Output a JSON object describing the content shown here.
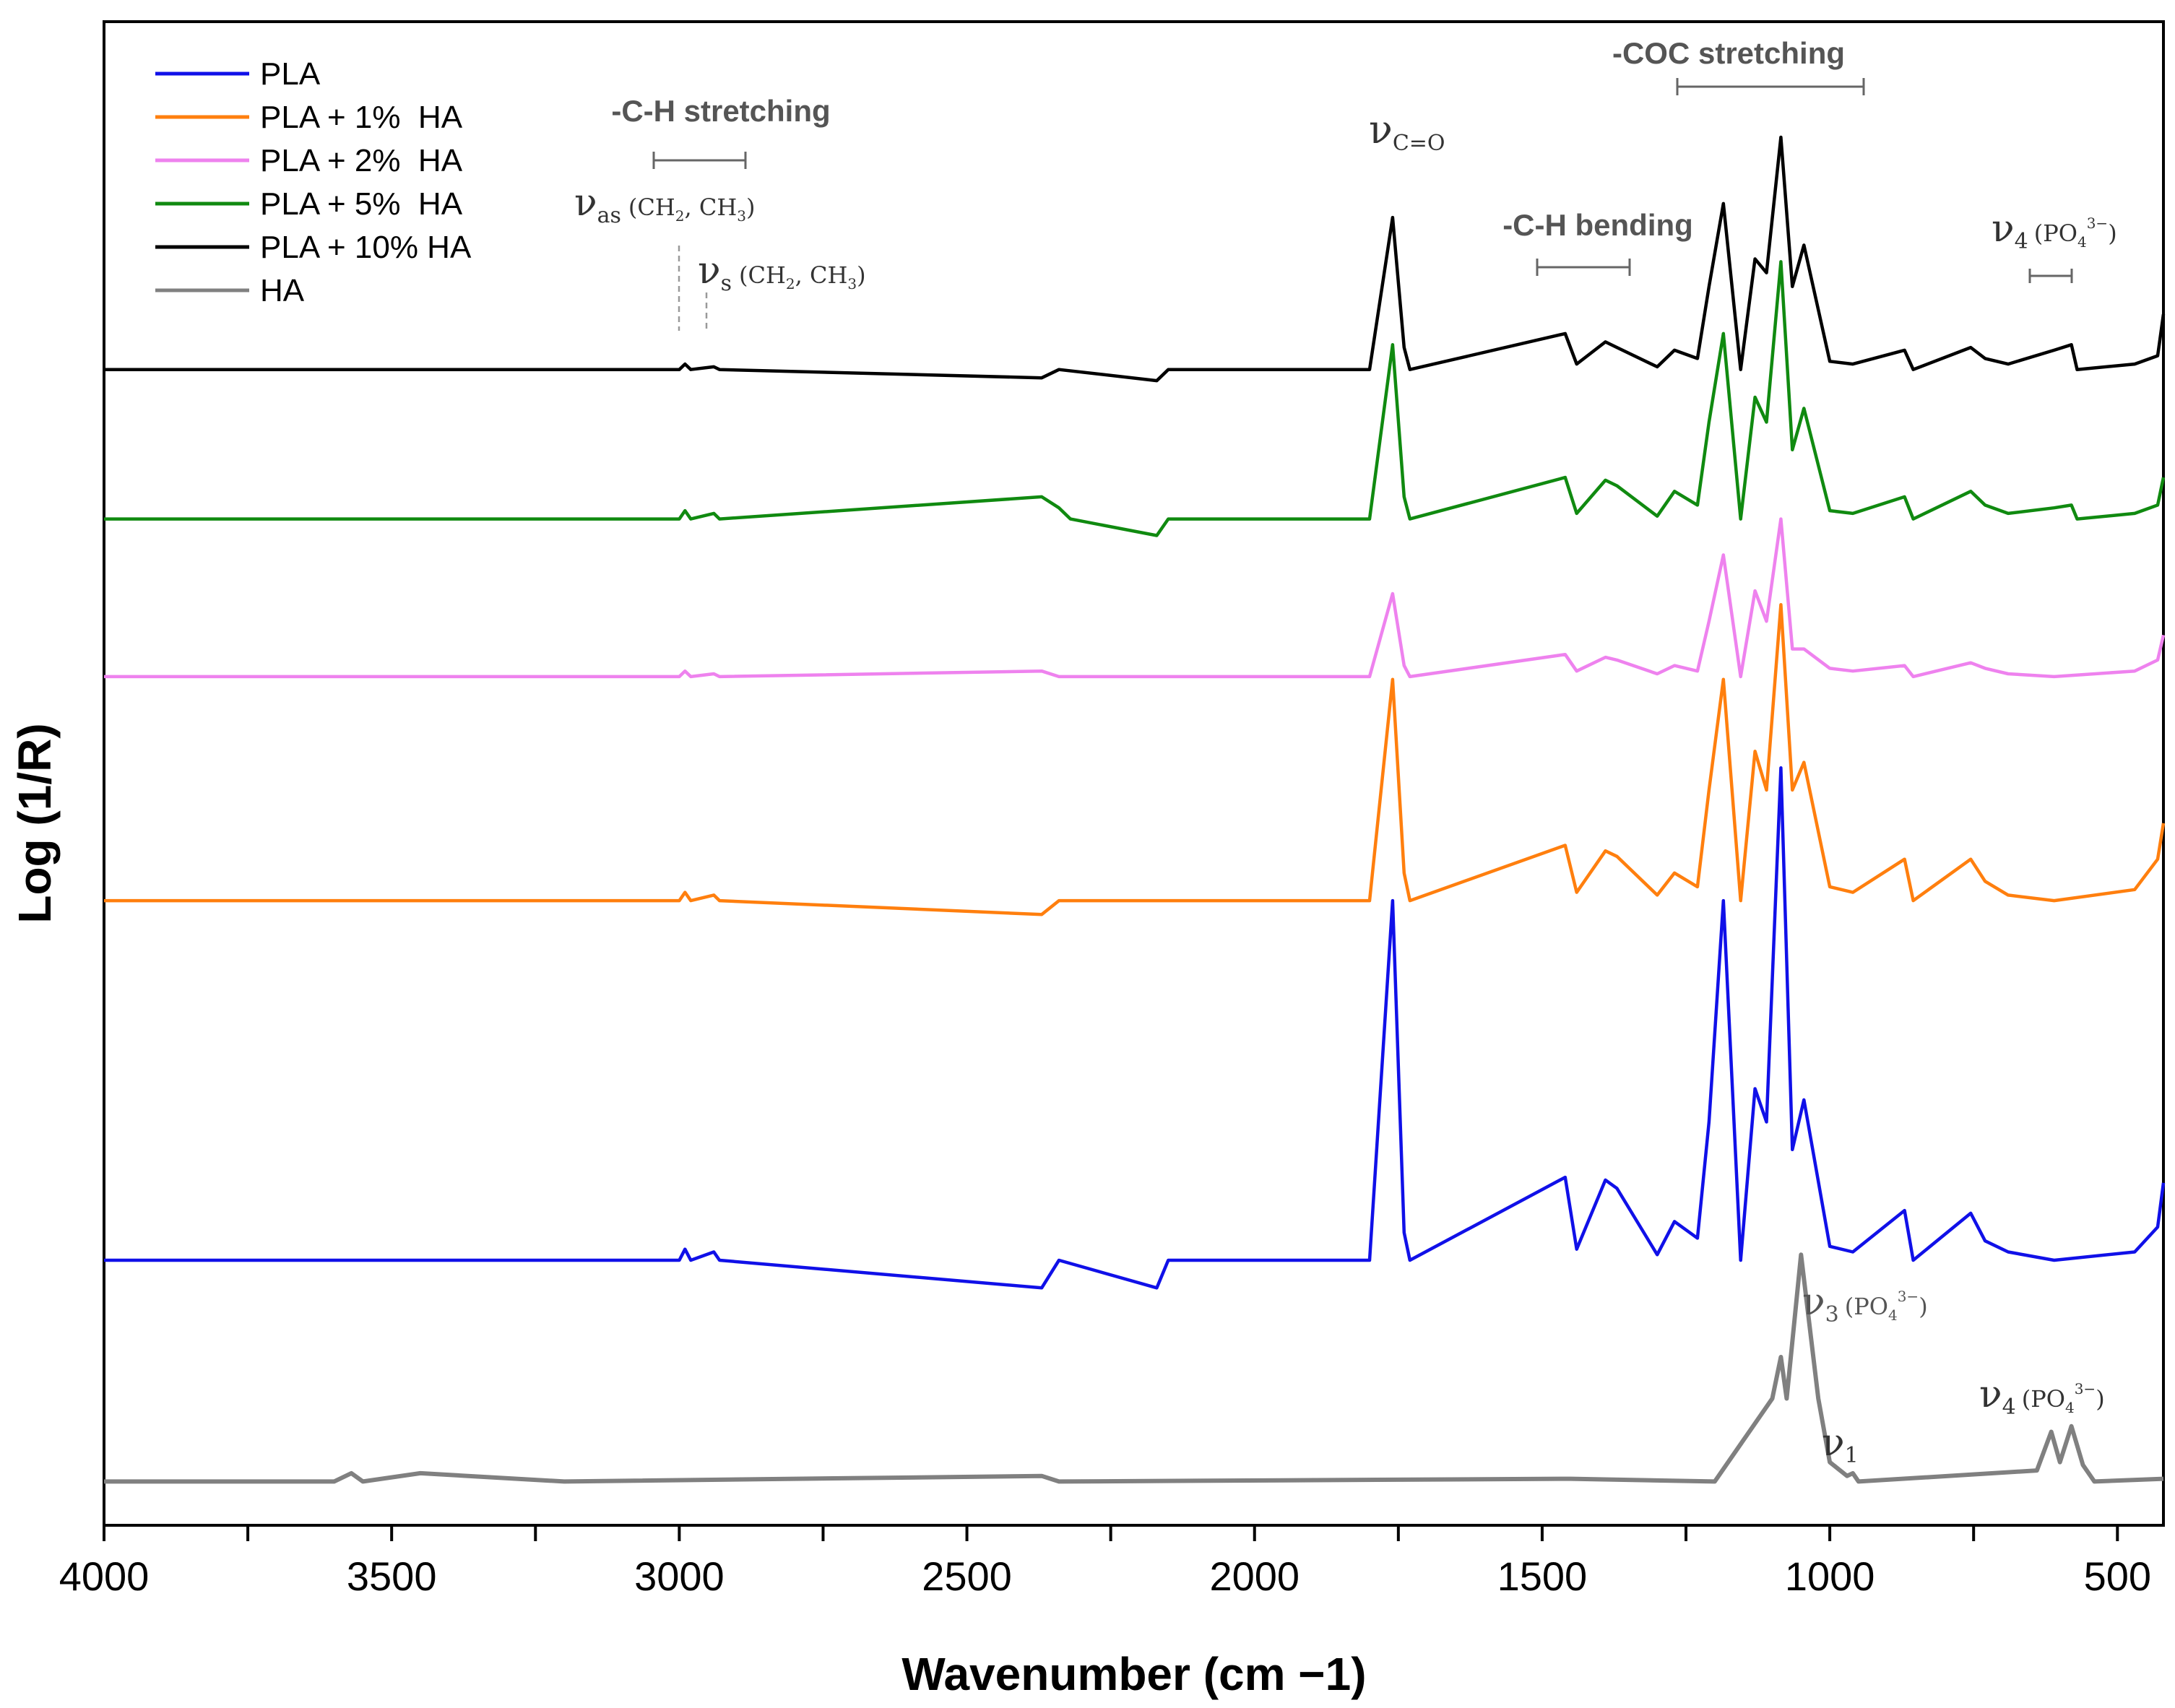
{
  "chart_data": {
    "type": "line",
    "title": "",
    "xlabel": "Wavenumber (cm −1)",
    "ylabel": "Log (1/R)",
    "xlim": [
      4000,
      420
    ],
    "x_ticks": [
      4000,
      3500,
      3000,
      2500,
      2000,
      1500,
      1000,
      500
    ],
    "x_tick_labels": [
      "4000",
      "3500",
      "3000",
      "2500",
      "2000",
      "1500",
      "1000",
      "500"
    ],
    "y_ticks_shown": false,
    "legend": {
      "placement": "top-left"
    },
    "series": [
      {
        "name": "PLA",
        "color": "#1010e8",
        "baseline": 0.0,
        "points": [
          [
            4000,
            0
          ],
          [
            3000,
            0
          ],
          [
            2990,
            0.004
          ],
          [
            2980,
            0
          ],
          [
            2940,
            0.003
          ],
          [
            2930,
            0
          ],
          [
            2370,
            -0.01
          ],
          [
            2340,
            0
          ],
          [
            2170,
            -0.01
          ],
          [
            2150,
            0
          ],
          [
            1800,
            0
          ],
          [
            1760,
            0.13
          ],
          [
            1740,
            0.01
          ],
          [
            1730,
            0
          ],
          [
            1460,
            0.03
          ],
          [
            1440,
            0.004
          ],
          [
            1390,
            0.029
          ],
          [
            1370,
            0.026
          ],
          [
            1300,
            0.002
          ],
          [
            1270,
            0.014
          ],
          [
            1230,
            0.008
          ],
          [
            1210,
            0.05
          ],
          [
            1185,
            0.13
          ],
          [
            1155,
            0
          ],
          [
            1130,
            0.062
          ],
          [
            1110,
            0.05
          ],
          [
            1085,
            0.178
          ],
          [
            1065,
            0.04
          ],
          [
            1045,
            0.058
          ],
          [
            1000,
            0.005
          ],
          [
            960,
            0.003
          ],
          [
            870,
            0.018
          ],
          [
            855,
            0
          ],
          [
            755,
            0.017
          ],
          [
            730,
            0.007
          ],
          [
            690,
            0.003
          ],
          [
            610,
            0
          ],
          [
            470,
            0.003
          ],
          [
            430,
            0.012
          ],
          [
            420,
            0.028
          ]
        ]
      },
      {
        "name": "PLA + 1%  HA",
        "color": "#ff7f0e",
        "baseline": 0.13,
        "points": [
          [
            4000,
            0
          ],
          [
            3000,
            0
          ],
          [
            2990,
            0.003
          ],
          [
            2980,
            0
          ],
          [
            2940,
            0.002
          ],
          [
            2930,
            0
          ],
          [
            2370,
            -0.005
          ],
          [
            2340,
            0
          ],
          [
            1800,
            0
          ],
          [
            1760,
            0.08
          ],
          [
            1740,
            0.01
          ],
          [
            1730,
            0
          ],
          [
            1460,
            0.02
          ],
          [
            1440,
            0.003
          ],
          [
            1390,
            0.018
          ],
          [
            1370,
            0.016
          ],
          [
            1300,
            0.002
          ],
          [
            1270,
            0.01
          ],
          [
            1230,
            0.005
          ],
          [
            1210,
            0.04
          ],
          [
            1185,
            0.08
          ],
          [
            1155,
            0
          ],
          [
            1130,
            0.054
          ],
          [
            1110,
            0.04
          ],
          [
            1085,
            0.107
          ],
          [
            1065,
            0.04
          ],
          [
            1045,
            0.05
          ],
          [
            1000,
            0.005
          ],
          [
            960,
            0.003
          ],
          [
            870,
            0.015
          ],
          [
            855,
            0
          ],
          [
            755,
            0.015
          ],
          [
            730,
            0.007
          ],
          [
            690,
            0.002
          ],
          [
            610,
            0
          ],
          [
            470,
            0.004
          ],
          [
            430,
            0.015
          ],
          [
            420,
            0.028
          ]
        ]
      },
      {
        "name": "PLA + 2%  HA",
        "color": "#ee82ee",
        "baseline": 0.211,
        "points": [
          [
            4000,
            0
          ],
          [
            3000,
            0
          ],
          [
            2990,
            0.002
          ],
          [
            2980,
            0
          ],
          [
            2940,
            0.001
          ],
          [
            2930,
            0
          ],
          [
            2370,
            0.002
          ],
          [
            2340,
            0
          ],
          [
            1800,
            0
          ],
          [
            1760,
            0.03
          ],
          [
            1740,
            0.004
          ],
          [
            1730,
            0
          ],
          [
            1460,
            0.008
          ],
          [
            1440,
            0.002
          ],
          [
            1390,
            0.007
          ],
          [
            1370,
            0.006
          ],
          [
            1300,
            0.001
          ],
          [
            1270,
            0.004
          ],
          [
            1230,
            0.002
          ],
          [
            1210,
            0.02
          ],
          [
            1185,
            0.044
          ],
          [
            1155,
            0
          ],
          [
            1130,
            0.031
          ],
          [
            1110,
            0.02
          ],
          [
            1085,
            0.057
          ],
          [
            1065,
            0.01
          ],
          [
            1045,
            0.01
          ],
          [
            1000,
            0.003
          ],
          [
            960,
            0.002
          ],
          [
            870,
            0.004
          ],
          [
            855,
            0
          ],
          [
            755,
            0.005
          ],
          [
            730,
            0.003
          ],
          [
            690,
            0.001
          ],
          [
            610,
            0
          ],
          [
            470,
            0.002
          ],
          [
            430,
            0.006
          ],
          [
            420,
            0.015
          ]
        ]
      },
      {
        "name": "PLA + 5%  HA",
        "color": "#108a10",
        "baseline": 0.268,
        "points": [
          [
            4000,
            0
          ],
          [
            3000,
            0
          ],
          [
            2990,
            0.003
          ],
          [
            2980,
            0
          ],
          [
            2940,
            0.002
          ],
          [
            2930,
            0
          ],
          [
            2370,
            0.008
          ],
          [
            2340,
            0.004
          ],
          [
            2320,
            0
          ],
          [
            2170,
            -0.006
          ],
          [
            2150,
            0
          ],
          [
            1800,
            0
          ],
          [
            1760,
            0.063
          ],
          [
            1740,
            0.008
          ],
          [
            1730,
            0
          ],
          [
            1460,
            0.015
          ],
          [
            1440,
            0.002
          ],
          [
            1390,
            0.014
          ],
          [
            1370,
            0.012
          ],
          [
            1300,
            0.001
          ],
          [
            1270,
            0.01
          ],
          [
            1230,
            0.005
          ],
          [
            1210,
            0.035
          ],
          [
            1185,
            0.067
          ],
          [
            1155,
            0
          ],
          [
            1130,
            0.044
          ],
          [
            1110,
            0.035
          ],
          [
            1085,
            0.093
          ],
          [
            1065,
            0.025
          ],
          [
            1045,
            0.04
          ],
          [
            1000,
            0.003
          ],
          [
            960,
            0.002
          ],
          [
            870,
            0.008
          ],
          [
            855,
            0
          ],
          [
            755,
            0.01
          ],
          [
            730,
            0.005
          ],
          [
            690,
            0.002
          ],
          [
            610,
            0.004
          ],
          [
            580,
            0.005
          ],
          [
            570,
            0
          ],
          [
            470,
            0.002
          ],
          [
            430,
            0.005
          ],
          [
            420,
            0.015
          ]
        ]
      },
      {
        "name": "PLA + 10% HA",
        "color": "#000000",
        "baseline": 0.322,
        "points": [
          [
            4000,
            0
          ],
          [
            3000,
            0
          ],
          [
            2990,
            0.002
          ],
          [
            2980,
            0
          ],
          [
            2940,
            0.001
          ],
          [
            2930,
            0
          ],
          [
            2370,
            -0.003
          ],
          [
            2340,
            0
          ],
          [
            2170,
            -0.004
          ],
          [
            2150,
            0
          ],
          [
            1800,
            0
          ],
          [
            1760,
            0.055
          ],
          [
            1740,
            0.008
          ],
          [
            1730,
            0
          ],
          [
            1460,
            0.013
          ],
          [
            1440,
            0.002
          ],
          [
            1390,
            0.01
          ],
          [
            1370,
            0.008
          ],
          [
            1300,
            0.001
          ],
          [
            1270,
            0.007
          ],
          [
            1230,
            0.004
          ],
          [
            1210,
            0.03
          ],
          [
            1185,
            0.06
          ],
          [
            1155,
            0
          ],
          [
            1130,
            0.04
          ],
          [
            1110,
            0.035
          ],
          [
            1085,
            0.084
          ],
          [
            1065,
            0.03
          ],
          [
            1045,
            0.045
          ],
          [
            1000,
            0.003
          ],
          [
            960,
            0.002
          ],
          [
            870,
            0.007
          ],
          [
            855,
            0
          ],
          [
            755,
            0.008
          ],
          [
            730,
            0.004
          ],
          [
            690,
            0.002
          ],
          [
            610,
            0.007
          ],
          [
            580,
            0.009
          ],
          [
            570,
            0
          ],
          [
            470,
            0.002
          ],
          [
            430,
            0.005
          ],
          [
            420,
            0.02
          ]
        ]
      },
      {
        "name": "HA",
        "color": "#808080",
        "baseline": -0.08,
        "points": [
          [
            4000,
            0
          ],
          [
            3600,
            0
          ],
          [
            3570,
            0.003
          ],
          [
            3550,
            0
          ],
          [
            3450,
            0.003
          ],
          [
            3200,
            0
          ],
          [
            2370,
            0.002
          ],
          [
            2340,
            0
          ],
          [
            1450,
            0.001
          ],
          [
            1200,
            0
          ],
          [
            1100,
            0.03
          ],
          [
            1085,
            0.045
          ],
          [
            1075,
            0.03
          ],
          [
            1050,
            0.082
          ],
          [
            1020,
            0.03
          ],
          [
            1000,
            0.007
          ],
          [
            970,
            0.002
          ],
          [
            960,
            0.003
          ],
          [
            950,
            0
          ],
          [
            640,
            0.004
          ],
          [
            615,
            0.018
          ],
          [
            600,
            0.007
          ],
          [
            580,
            0.02
          ],
          [
            560,
            0.006
          ],
          [
            540,
            0
          ],
          [
            420,
            0.001
          ]
        ]
      }
    ],
    "annotations": [
      {
        "text": "-C-H stretching",
        "x_range": [
          3050,
          2890
        ]
      },
      {
        "text": "-C-H bending",
        "x_range": [
          1500,
          1340
        ]
      },
      {
        "text": "-COC stretching",
        "x_range": [
          1250,
          930
        ]
      },
      {
        "nu": "ν",
        "sub": "as",
        "paren": "(CH",
        "paren2": ", CH",
        "tail": ")",
        "x": 3000
      },
      {
        "nu": "ν",
        "sub": "s",
        "paren": "(CH",
        "paren2": ", CH",
        "tail": ")",
        "x": 2950
      },
      {
        "nu": "ν",
        "sub": "C=O",
        "x": 1760
      },
      {
        "nu": "ν",
        "sub": "4",
        "paren": "(PO",
        "sup": "3−",
        "tail": ")",
        "x_range": [
          635,
          560
        ]
      },
      {
        "nu": "ν",
        "sub": "3",
        "paren": "(PO",
        "sup": "3−",
        "tail": ")",
        "x": 1050
      },
      {
        "nu": "ν",
        "sub": "1",
        "x": 962
      },
      {
        "nu": "ν",
        "sub": "4",
        "paren": "(PO",
        "sup": "3−",
        "tail": ")",
        "x": 600
      }
    ]
  }
}
